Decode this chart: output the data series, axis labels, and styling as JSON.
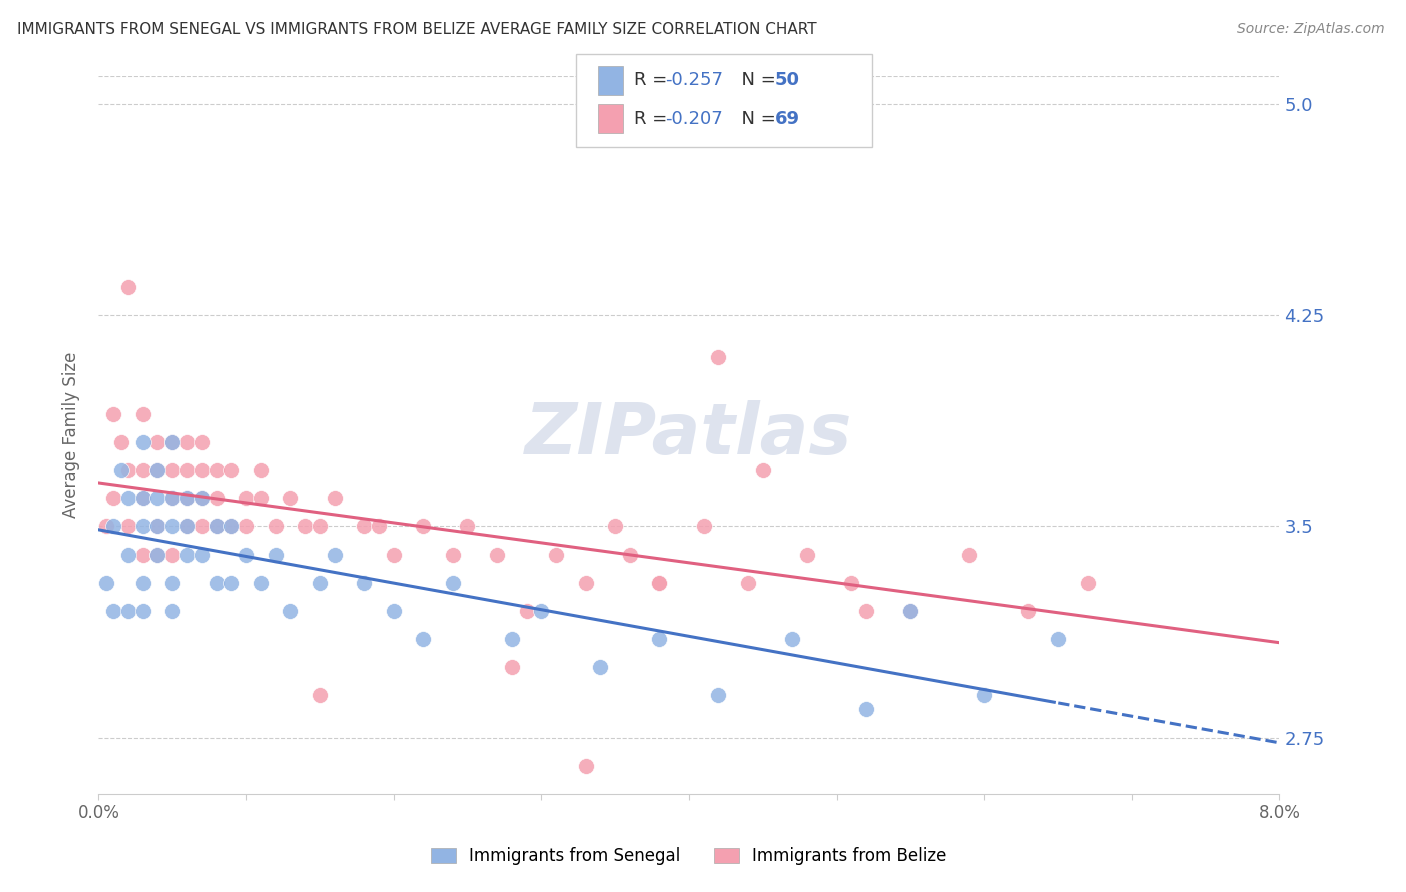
{
  "title": "IMMIGRANTS FROM SENEGAL VS IMMIGRANTS FROM BELIZE AVERAGE FAMILY SIZE CORRELATION CHART",
  "source": "Source: ZipAtlas.com",
  "ylabel": "Average Family Size",
  "legend_label1": "Immigrants from Senegal",
  "legend_label2": "Immigrants from Belize",
  "R1": -0.257,
  "N1": 50,
  "R2": -0.207,
  "N2": 69,
  "color1": "#92b4e3",
  "color2": "#f4a0b0",
  "trendline1_color": "#4472c4",
  "trendline2_color": "#e06080",
  "legend_text_color": "#4472c4",
  "xlim": [
    0.0,
    0.08
  ],
  "ylim": [
    2.55,
    5.1
  ],
  "yticks": [
    2.75,
    3.5,
    4.25,
    5.0
  ],
  "right_axis_color": "#4472c4",
  "watermark": "ZIPatlas",
  "senegal_x": [
    0.0005,
    0.001,
    0.001,
    0.0015,
    0.002,
    0.002,
    0.002,
    0.003,
    0.003,
    0.003,
    0.003,
    0.003,
    0.004,
    0.004,
    0.004,
    0.004,
    0.005,
    0.005,
    0.005,
    0.005,
    0.005,
    0.006,
    0.006,
    0.006,
    0.007,
    0.007,
    0.008,
    0.008,
    0.009,
    0.009,
    0.01,
    0.011,
    0.012,
    0.013,
    0.015,
    0.016,
    0.018,
    0.02,
    0.022,
    0.024,
    0.028,
    0.03,
    0.034,
    0.038,
    0.042,
    0.047,
    0.052,
    0.055,
    0.06,
    0.065
  ],
  "senegal_y": [
    3.3,
    3.2,
    3.5,
    3.7,
    3.6,
    3.4,
    3.2,
    3.8,
    3.6,
    3.5,
    3.3,
    3.2,
    3.7,
    3.6,
    3.5,
    3.4,
    3.8,
    3.6,
    3.5,
    3.3,
    3.2,
    3.6,
    3.5,
    3.4,
    3.6,
    3.4,
    3.5,
    3.3,
    3.5,
    3.3,
    3.4,
    3.3,
    3.4,
    3.2,
    3.3,
    3.4,
    3.3,
    3.2,
    3.1,
    3.3,
    3.1,
    3.2,
    3.0,
    3.1,
    2.9,
    3.1,
    2.85,
    3.2,
    2.9,
    3.1
  ],
  "belize_x": [
    0.0005,
    0.001,
    0.001,
    0.0015,
    0.002,
    0.002,
    0.002,
    0.003,
    0.003,
    0.003,
    0.003,
    0.004,
    0.004,
    0.004,
    0.004,
    0.005,
    0.005,
    0.005,
    0.005,
    0.006,
    0.006,
    0.006,
    0.006,
    0.007,
    0.007,
    0.007,
    0.007,
    0.008,
    0.008,
    0.008,
    0.009,
    0.009,
    0.01,
    0.01,
    0.011,
    0.011,
    0.012,
    0.013,
    0.014,
    0.015,
    0.016,
    0.018,
    0.019,
    0.02,
    0.022,
    0.024,
    0.025,
    0.027,
    0.029,
    0.031,
    0.033,
    0.036,
    0.038,
    0.041,
    0.044,
    0.048,
    0.051,
    0.055,
    0.059,
    0.063,
    0.067,
    0.045,
    0.052,
    0.035,
    0.028,
    0.042,
    0.038,
    0.015,
    0.033
  ],
  "belize_y": [
    3.5,
    3.9,
    3.6,
    3.8,
    4.35,
    3.7,
    3.5,
    3.9,
    3.7,
    3.6,
    3.4,
    3.8,
    3.7,
    3.5,
    3.4,
    3.8,
    3.7,
    3.6,
    3.4,
    3.8,
    3.7,
    3.6,
    3.5,
    3.8,
    3.7,
    3.6,
    3.5,
    3.7,
    3.6,
    3.5,
    3.7,
    3.5,
    3.6,
    3.5,
    3.7,
    3.6,
    3.5,
    3.6,
    3.5,
    3.5,
    3.6,
    3.5,
    3.5,
    3.4,
    3.5,
    3.4,
    3.5,
    3.4,
    3.2,
    3.4,
    3.3,
    3.4,
    3.3,
    3.5,
    3.3,
    3.4,
    3.3,
    3.2,
    3.4,
    3.2,
    3.3,
    3.7,
    3.2,
    3.5,
    3.0,
    4.1,
    3.3,
    2.9,
    2.65
  ]
}
